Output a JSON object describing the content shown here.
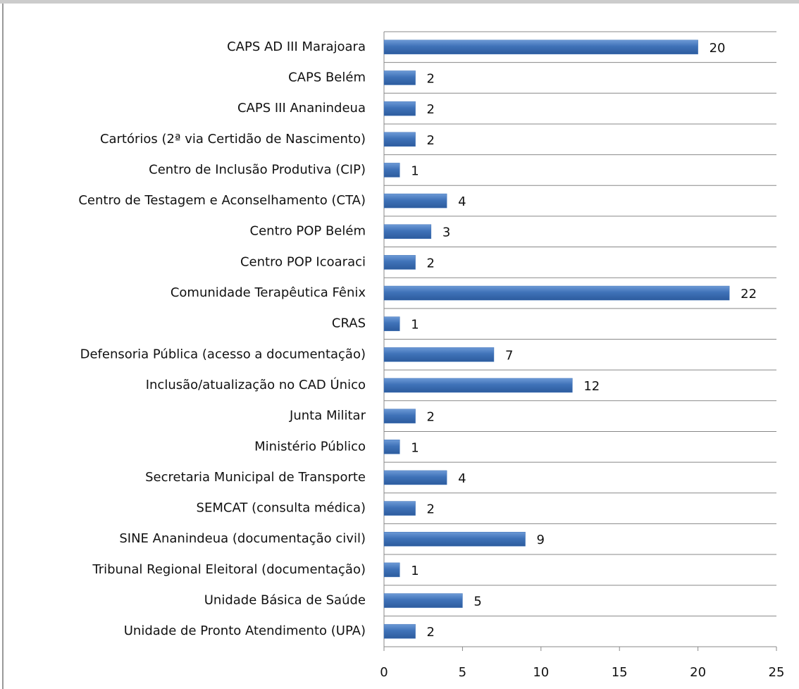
{
  "chart_data": {
    "type": "bar",
    "orientation": "horizontal",
    "categories": [
      "CAPS AD III Marajoara",
      "CAPS Belém",
      "CAPS III Ananindeua",
      "Cartórios (2ª via Certidão de Nascimento)",
      "Centro de Inclusão Produtiva (CIP)",
      "Centro de Testagem e Aconselhamento (CTA)",
      "Centro POP Belém",
      "Centro POP Icoaraci",
      "Comunidade Terapêutica Fênix",
      "CRAS",
      "Defensoria Pública (acesso a documentação)",
      "Inclusão/atualização no CAD Único",
      "Junta Militar",
      "Ministério Público",
      "Secretaria Municipal de Transporte",
      "SEMCAT (consulta médica)",
      "SINE Ananindeua (documentação civil)",
      "Tribunal Regional Eleitoral (documentação)",
      "Unidade Básica de Saúde",
      "Unidade de Pronto Atendimento (UPA)"
    ],
    "values": [
      20,
      2,
      2,
      2,
      1,
      4,
      3,
      2,
      22,
      1,
      7,
      12,
      2,
      1,
      4,
      2,
      9,
      1,
      5,
      2
    ],
    "color": "#3f72b8",
    "xlim": [
      0,
      25
    ],
    "xticks": [
      0,
      5,
      10,
      15,
      20,
      25
    ],
    "grid": true
  }
}
